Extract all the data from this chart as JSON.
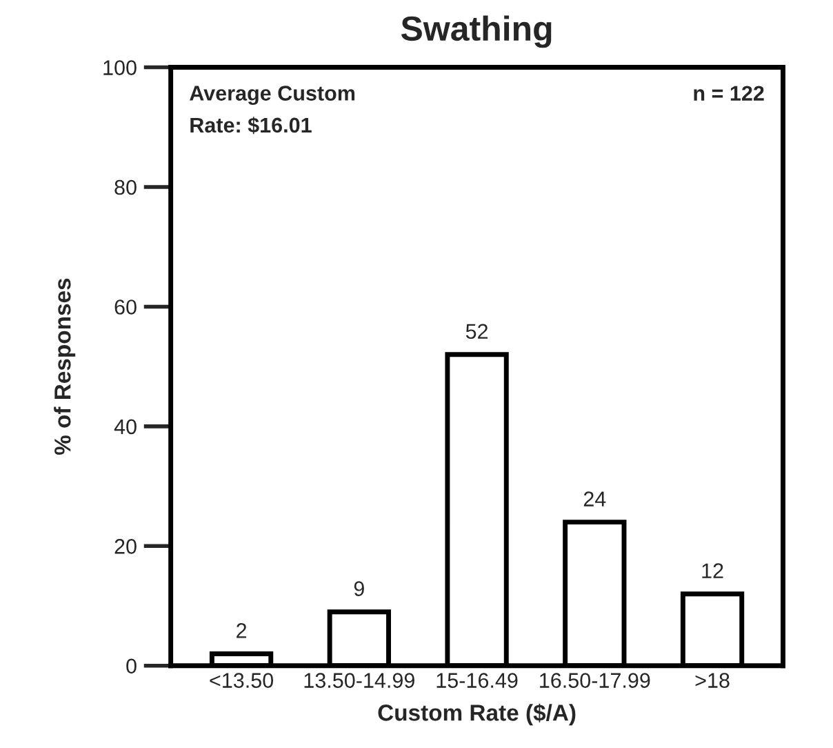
{
  "chart_data": {
    "type": "bar",
    "title": "Swathing",
    "xlabel": "Custom Rate ($/A)",
    "ylabel": "% of Responses",
    "categories": [
      "<13.50",
      "13.50-14.99",
      "15-16.49",
      "16.50-17.99",
      ">18"
    ],
    "values": [
      2,
      9,
      52,
      24,
      12
    ],
    "color": "#ffffff",
    "data_labels": true,
    "ylim": [
      0,
      100
    ],
    "yticks": [
      0,
      20,
      40,
      60,
      80,
      100
    ],
    "grid": false,
    "annotations": [
      "Average Custom\nRate: $16.01",
      "n = 122"
    ]
  }
}
